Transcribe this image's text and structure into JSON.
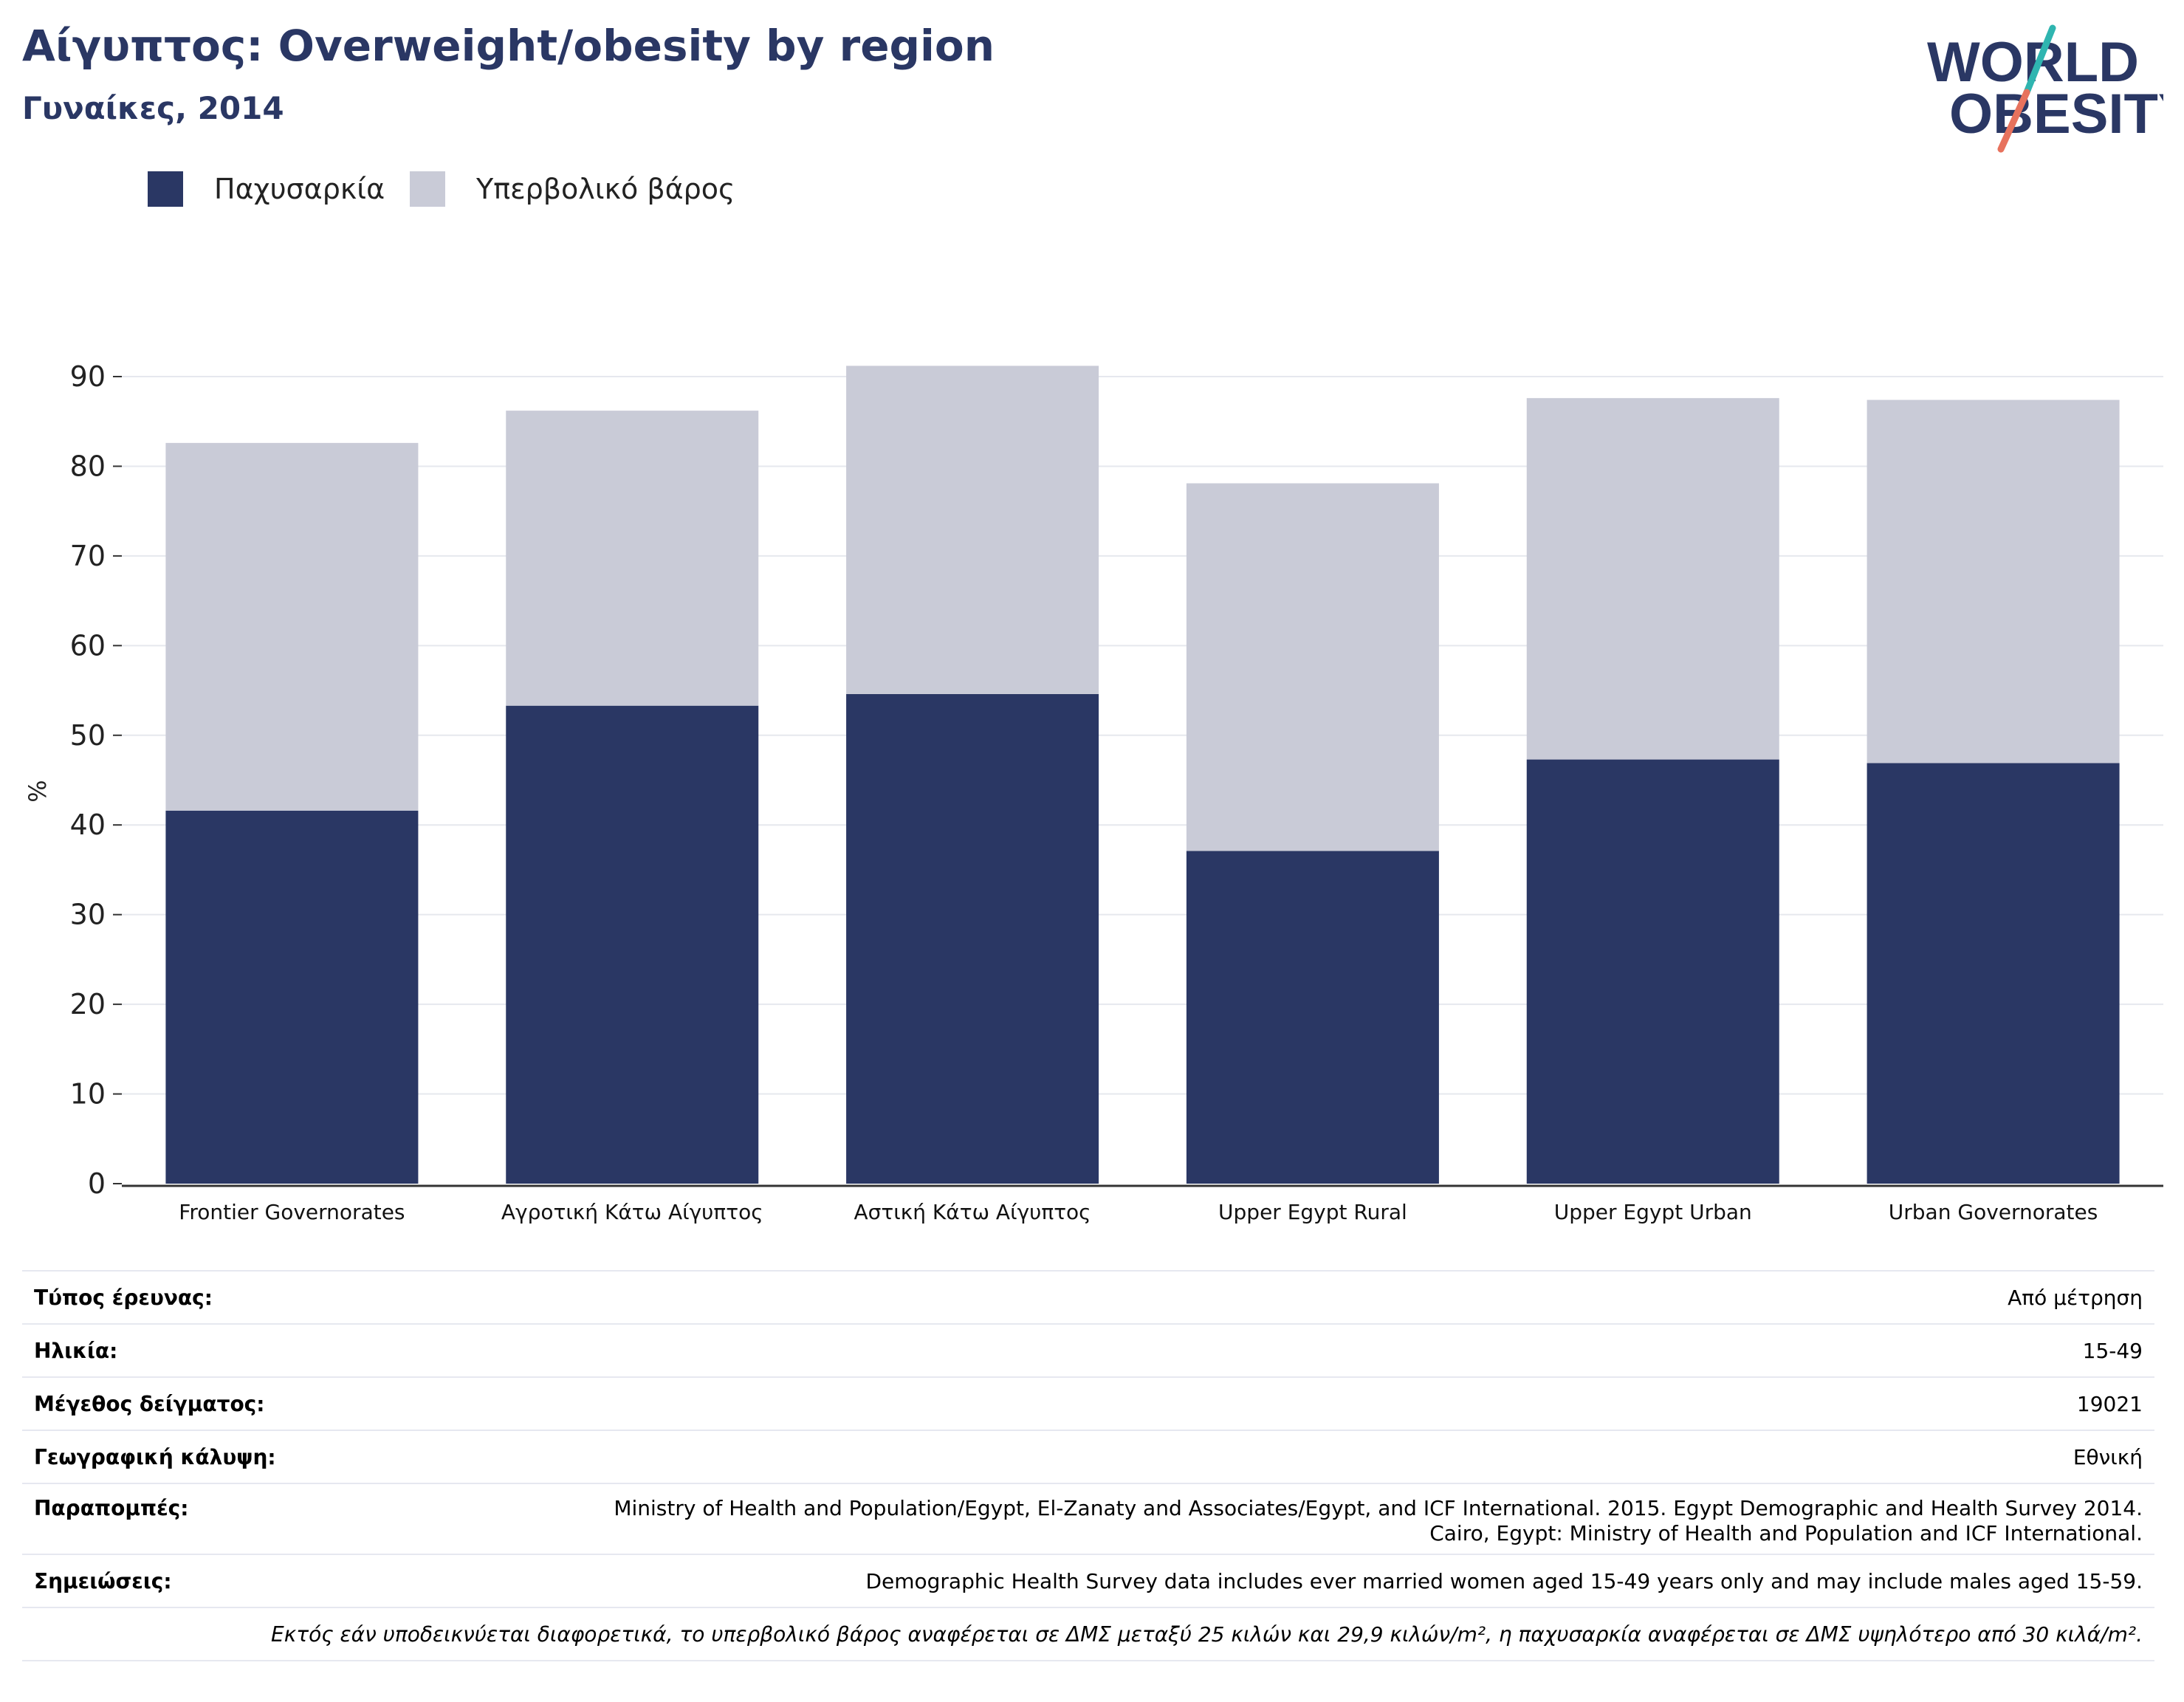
{
  "title": "Αίγυπτος: Overweight/obesity by region",
  "subtitle": "Γυναίκες, 2014",
  "logo": {
    "line1": "WORLD",
    "line2": "OBESITY"
  },
  "colors": {
    "obesity": "#2a3764",
    "overweight": "#c9cbd7",
    "title": "#2a3764",
    "grid": "#e6e8ee",
    "logo_teal": "#2fb5b0",
    "logo_coral": "#e7725d"
  },
  "chart_data": {
    "type": "bar",
    "stacked": true,
    "ylabel": "%",
    "ylim": [
      0,
      90
    ],
    "yticks": [
      0,
      10,
      20,
      30,
      40,
      50,
      60,
      70,
      80,
      90
    ],
    "grid": true,
    "legend_position": "top-left",
    "categories": [
      "Frontier Governorates",
      "Αγροτική Κάτω Αίγυπτος",
      "Αστική Κάτω Αίγυπτος",
      "Upper Egypt Rural",
      "Upper Egypt Urban",
      "Urban Governorates"
    ],
    "series": [
      {
        "name": "Παχυσαρκία",
        "values": [
          41.6,
          53.3,
          54.6,
          37.1,
          47.3,
          46.9
        ]
      },
      {
        "name": "Υπερβολικό βάρος",
        "values": [
          41.0,
          32.9,
          36.6,
          41.0,
          40.3,
          40.5
        ]
      }
    ]
  },
  "details": {
    "survey_type": {
      "label": "Τύπος έρευνας:",
      "value": "Από μέτρηση"
    },
    "age": {
      "label": "Ηλικία:",
      "value": "15-49"
    },
    "sample_size": {
      "label": "Μέγεθος δείγματος:",
      "value": "19021"
    },
    "coverage": {
      "label": "Γεωγραφική κάλυψη:",
      "value": "Εθνική"
    },
    "references": {
      "label": "Παραπομπές:",
      "value": "Ministry of Health and Population/Egypt, El-Zanaty and Associates/Egypt, and ICF International. 2015. Egypt Demographic and Health Survey 2014. Cairo, Egypt: Ministry of Health and Population and ICF International."
    },
    "notes": {
      "label": "Σημειώσεις:",
      "value": "Demographic Health Survey data includes ever married women aged 15-49 years only and may include males aged 15-59."
    },
    "footnote": "Εκτός εάν υποδεικνύεται διαφορετικά, το υπερβολικό βάρος αναφέρεται σε ΔΜΣ μεταξύ 25 κιλών και 29,9 κιλών/m², η παχυσαρκία αναφέρεται σε ΔΜΣ υψηλότερο από 30 κιλά/m²."
  }
}
